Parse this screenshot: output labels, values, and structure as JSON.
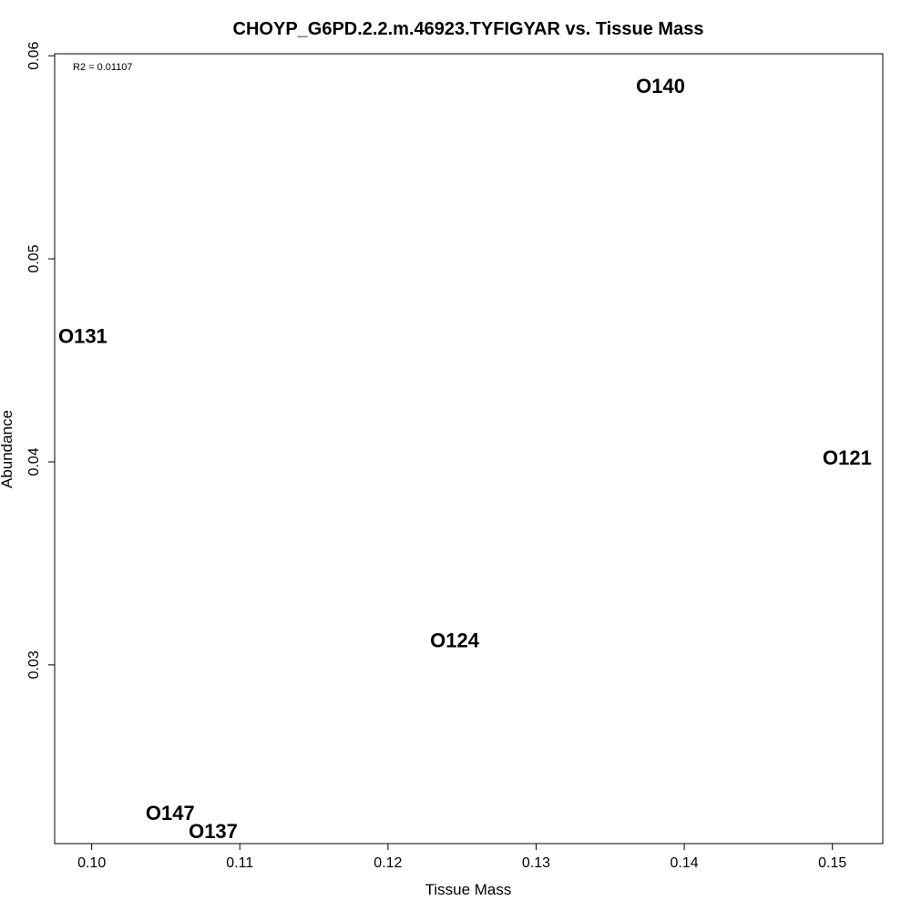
{
  "chart_data": {
    "type": "scatter",
    "title": "CHOYP_G6PD.2.2.m.46923.TYFIGYAR vs. Tissue Mass",
    "xlabel": "Tissue Mass",
    "ylabel": "Abundance",
    "annotation": "R2 = 0.01107",
    "xlim": [
      0.0975,
      0.1534
    ],
    "ylim": [
      0.0212,
      0.0601
    ],
    "xticks": [
      0.1,
      0.11,
      0.12,
      0.13,
      0.14,
      0.15
    ],
    "xtick_labels": [
      "0.10",
      "0.11",
      "0.12",
      "0.13",
      "0.14",
      "0.15"
    ],
    "yticks": [
      0.03,
      0.04,
      0.05,
      0.06
    ],
    "ytick_labels": [
      "0.03",
      "0.04",
      "0.05",
      "0.06"
    ],
    "grid": false,
    "points": [
      {
        "label": "O140",
        "x": 0.1384,
        "y": 0.0585
      },
      {
        "label": "O131",
        "x": 0.0994,
        "y": 0.0462
      },
      {
        "label": "O121",
        "x": 0.151,
        "y": 0.0402
      },
      {
        "label": "O124",
        "x": 0.1245,
        "y": 0.0312
      },
      {
        "label": "O147",
        "x": 0.1053,
        "y": 0.0227
      },
      {
        "label": "O137",
        "x": 0.1082,
        "y": 0.0218
      }
    ]
  }
}
